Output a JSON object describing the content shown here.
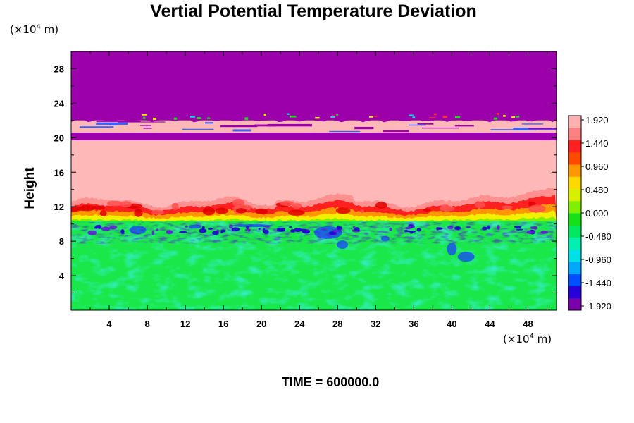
{
  "chart_data": {
    "type": "heatmap",
    "title": "Vertial Potential Temperature Deviation",
    "ylabel": "Height",
    "xlabel": "",
    "y_unit": "(×10",
    "x_unit": "(×10",
    "unit_exponent": "4",
    "unit_suffix": " m)",
    "x_ticks": [
      4,
      8,
      12,
      16,
      20,
      24,
      28,
      32,
      36,
      40,
      44,
      48
    ],
    "y_ticks": [
      4,
      8,
      12,
      16,
      20,
      24,
      28
    ],
    "xlim": [
      0,
      51
    ],
    "ylim": [
      0,
      30
    ],
    "colorbar": {
      "ticks": [
        "1.920",
        "1.440",
        "0.960",
        "0.480",
        "0.000",
        "-0.480",
        "-0.960",
        "-1.440",
        "-1.920"
      ],
      "range": [
        -1.92,
        1.92
      ],
      "colors": [
        "#7a00aa",
        "#2800d8",
        "#0050ff",
        "#00a8ff",
        "#00e0e8",
        "#00f0b0",
        "#00e860",
        "#18e018",
        "#80f000",
        "#d8f000",
        "#ffd800",
        "#ff9800",
        "#ff4800",
        "#ff2020",
        "#ff8080",
        "#ffb0b0"
      ]
    },
    "field_description": {
      "layer_top": [
        22,
        30
      ],
      "layer_upper_band": [
        19.7,
        22
      ],
      "layer_middle": [
        10.5,
        19.7
      ],
      "layer_bottom": [
        0,
        10.5
      ]
    },
    "colors": {
      "purple": "#9b00aa",
      "pink": "#ffb8b8",
      "green": "#1ae84a",
      "red": "#ff2020",
      "yellow": "#f0f000",
      "blue": "#1800d0",
      "cyan": "#20e0d0"
    }
  },
  "footer": {
    "time_label": "TIME = 600000.0"
  }
}
